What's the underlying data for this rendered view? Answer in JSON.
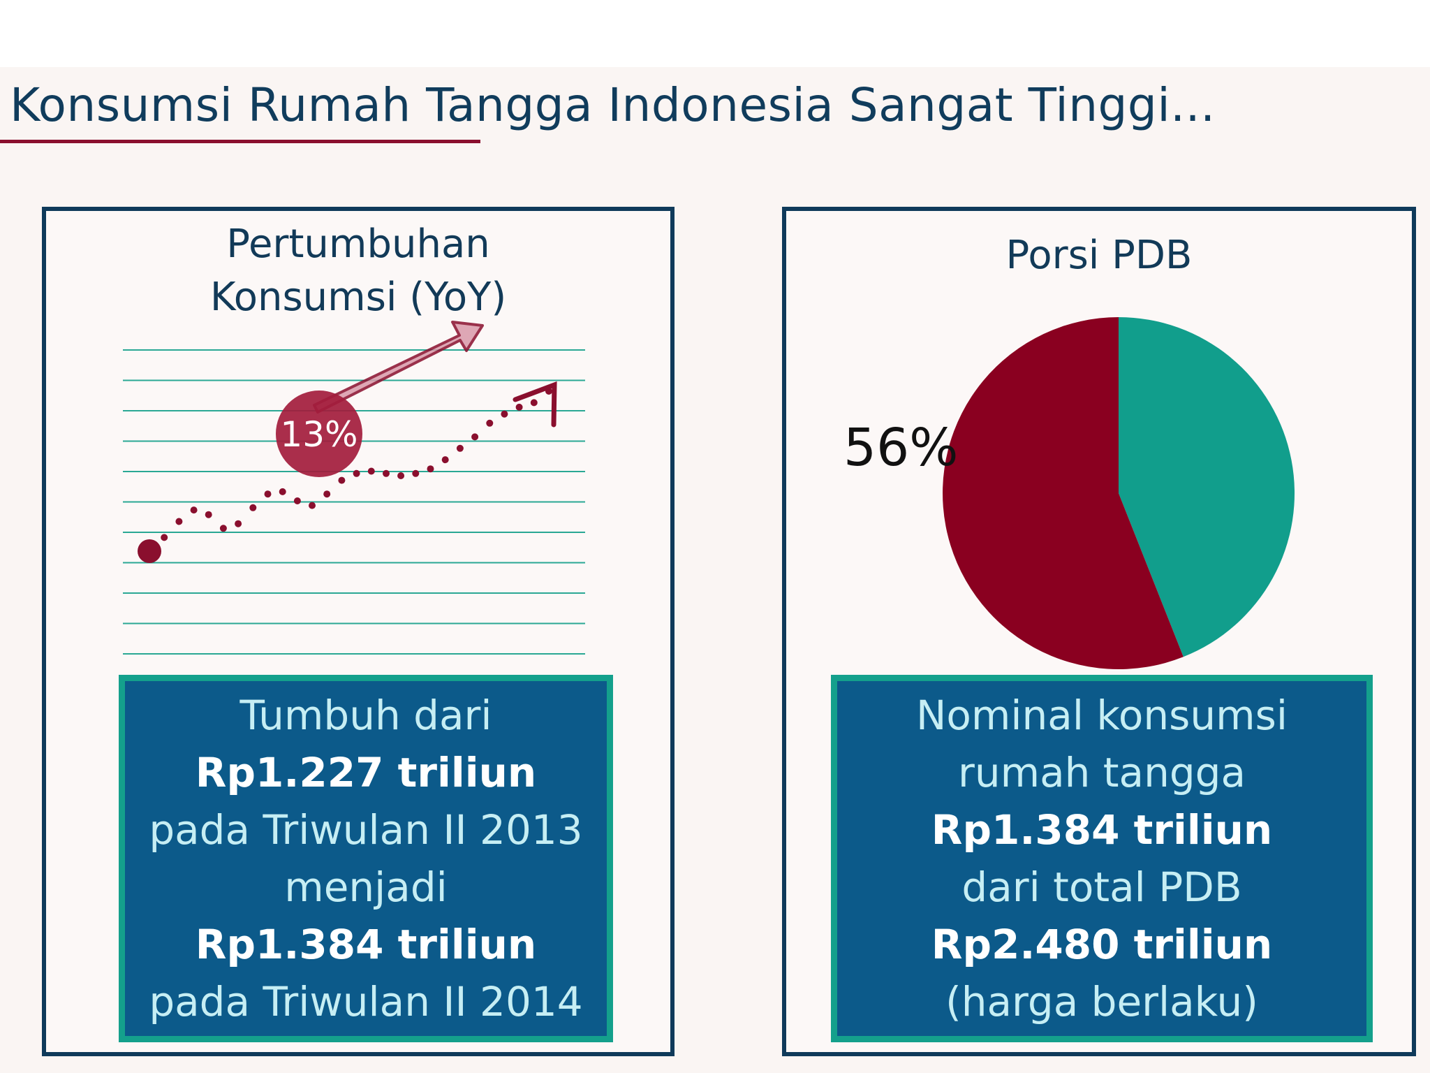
{
  "slide": {
    "title": "Konsumsi Rumah Tangga Indonesia Sangat Tinggi...",
    "colors": {
      "navy": "#0f3a5a",
      "maroon": "#8a0f2e",
      "teal": "#119e8c",
      "box": "#0c5a8a"
    }
  },
  "left_panel": {
    "title_line1": "Pertumbuhan",
    "title_line2": "Konsumsi (YoY)",
    "badge": "13%",
    "info_lines": [
      "Tumbuh dari",
      "Rp1.227 triliun",
      "pada Triwulan II 2013",
      "menjadi",
      "Rp1.384 triliun",
      "pada Triwulan II 2014"
    ]
  },
  "right_panel": {
    "title": "Porsi PDB",
    "info_lines": [
      "Nominal konsumsi",
      "rumah tangga",
      "Rp1.384 triliun",
      "dari total PDB",
      "Rp2.480 triliun",
      "(harga berlaku)"
    ]
  },
  "chart_data": [
    {
      "type": "line",
      "title": "Pertumbuhan Konsumsi (YoY)",
      "annotation": "13%",
      "note": "illustrative upward dotted trend line with arrow; no axes or tick labels shown",
      "x": [
        1,
        2,
        3,
        4,
        5,
        6,
        7,
        8,
        9,
        10,
        11,
        12,
        13,
        14,
        15,
        16,
        17,
        18,
        19,
        20,
        21,
        22,
        23,
        24,
        25,
        26,
        27,
        28
      ],
      "y": [
        0.0,
        0.6,
        1.3,
        1.8,
        1.6,
        1.0,
        1.2,
        1.9,
        2.5,
        2.6,
        2.2,
        2.0,
        2.5,
        3.1,
        3.4,
        3.5,
        3.4,
        3.3,
        3.4,
        3.6,
        4.0,
        4.5,
        5.0,
        5.6,
        6.0,
        6.3,
        6.5,
        7.0
      ],
      "grid": true
    },
    {
      "type": "pie",
      "title": "Porsi PDB",
      "slices": [
        {
          "label": "56%",
          "value": 56,
          "color": "#8a0020"
        },
        {
          "label": "",
          "value": 44,
          "color": "#119e8c"
        }
      ],
      "start_angle_deg": 0,
      "direction": "counterclockwise-from-top for first slice"
    }
  ]
}
